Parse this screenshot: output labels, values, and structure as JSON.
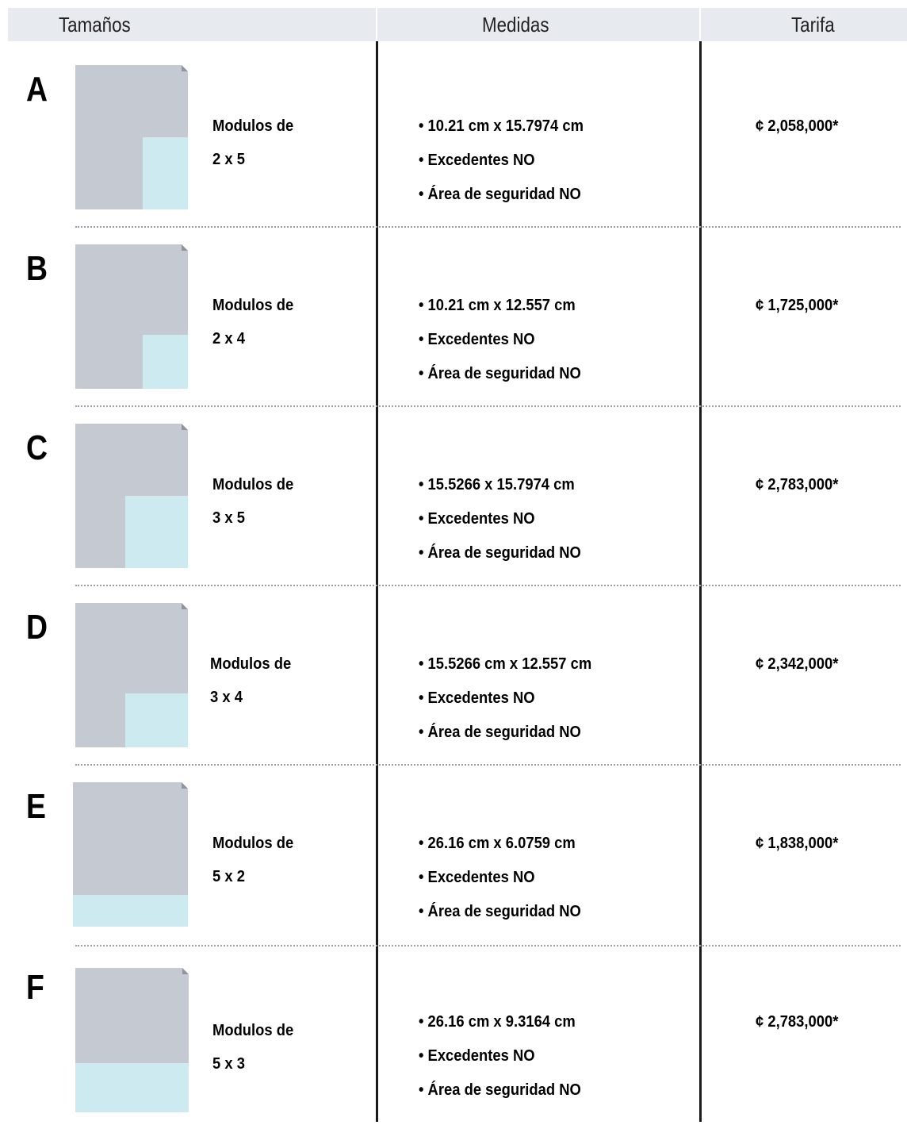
{
  "header": {
    "col1": "Tamaños",
    "col2": "Medidas",
    "col3": "Tarifa"
  },
  "colors": {
    "header_bg": "#e7ebef",
    "thumb_gray": "#c4c9d2",
    "thumb_highlight": "#cdeaf1"
  },
  "rows": [
    {
      "letter": "A",
      "modules_label": "Modulos de",
      "modules_value": "2 x 5",
      "dimensions": "• 10.21 cm x 15.7974 cm",
      "excedentes": "• Excedentes NO",
      "seguridad": "• Área de seguridad  NO",
      "price": "¢ 2,058,000*"
    },
    {
      "letter": "B",
      "modules_label": "Modulos de",
      "modules_value": "2 x 4",
      "dimensions": "• 10.21 cm x 12.557 cm",
      "excedentes": "• Excedentes NO",
      "seguridad": "• Área de seguridad  NO",
      "price": "¢ 1,725,000*"
    },
    {
      "letter": "C",
      "modules_label": "Modulos de",
      "modules_value": "3 x 5",
      "dimensions": "• 15.5266 x 15.7974 cm",
      "excedentes": "• Excedentes NO",
      "seguridad": "• Área de seguridad  NO",
      "price": "¢ 2,783,000*"
    },
    {
      "letter": "D",
      "modules_label": "Modulos de",
      "modules_value": "3 x 4",
      "dimensions": "• 15.5266 cm x 12.557 cm",
      "excedentes": "• Excedentes NO",
      "seguridad": "• Área de seguridad  NO",
      "price": "¢ 2,342,000*"
    },
    {
      "letter": "E",
      "modules_label": "Modulos de",
      "modules_value": "5 x 2",
      "dimensions": "• 26.16 cm x 6.0759 cm",
      "excedentes": "• Excedentes NO",
      "seguridad": "• Área de seguridad  NO",
      "price": "¢ 1,838,000*"
    },
    {
      "letter": "F",
      "modules_label": "Modulos de",
      "modules_value": "5 x 3",
      "dimensions": "• 26.16 cm x 9.3164 cm",
      "excedentes": "• Excedentes NO",
      "seguridad": "• Área de seguridad  NO",
      "price": "¢ 2,783,000*"
    }
  ]
}
